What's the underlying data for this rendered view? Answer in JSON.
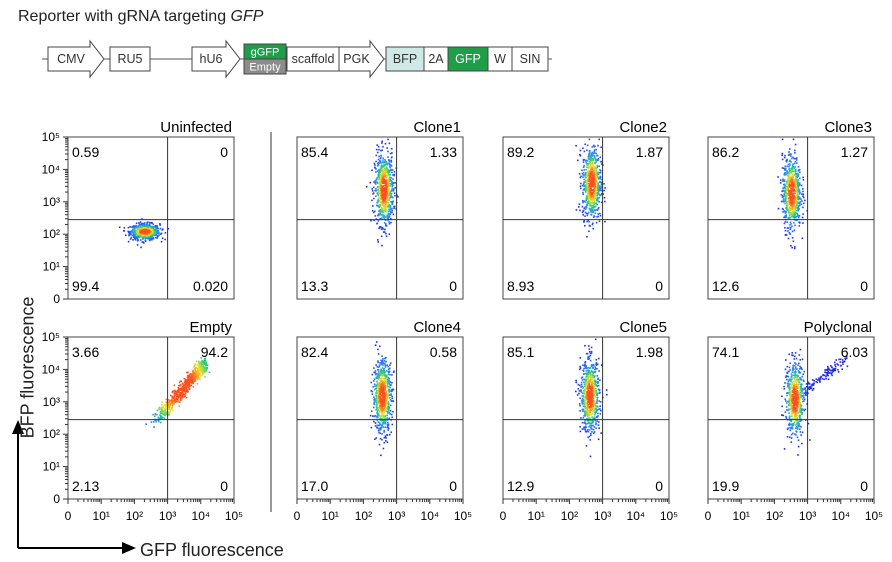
{
  "figure_title": {
    "prefix": "Reporter with gRNA targeting ",
    "gene": "GFP"
  },
  "construct": {
    "elements": [
      {
        "label": "CMV",
        "kind": "arrow"
      },
      {
        "label": "RU5",
        "kind": "box"
      },
      {
        "label": "hU6",
        "kind": "arrow"
      },
      {
        "label": "gGFP",
        "kind": "green"
      },
      {
        "label": "Empty",
        "kind": "grey"
      },
      {
        "label": "scaffold",
        "kind": "box"
      },
      {
        "label": "PGK",
        "kind": "arrow"
      },
      {
        "label": "BFP",
        "kind": "lightblue"
      },
      {
        "label": "2A",
        "kind": "box"
      },
      {
        "label": "GFP",
        "kind": "green"
      },
      {
        "label": "W",
        "kind": "box"
      },
      {
        "label": "SIN",
        "kind": "box"
      }
    ],
    "colors": {
      "green": "#1f9e4a",
      "grey": "#8c8c8c",
      "lightblue": "#cfeae6"
    }
  },
  "axes": {
    "xlabel": "GFP fluorescence",
    "ylabel": "BFP fluorescence",
    "ticks": [
      "0",
      "10¹",
      "10²",
      "10³",
      "10⁴",
      "10⁵"
    ]
  },
  "chart_data": [
    {
      "type": "scatter",
      "title": "Uninfected",
      "quadrants": {
        "ul": "0.59",
        "ur": "0",
        "ll": "99.4",
        "lr": "0.020"
      },
      "gate": {
        "x": 3.0,
        "y": 2.45
      },
      "population": {
        "x": 2.3,
        "y": 2.1,
        "shape": "compact"
      }
    },
    {
      "type": "scatter",
      "title": "Clone1",
      "quadrants": {
        "ul": "85.4",
        "ur": "1.33",
        "ll": "13.3",
        "lr": "0"
      },
      "gate": {
        "x": 3.0,
        "y": 2.45
      },
      "population": {
        "x": 2.6,
        "y": 3.4,
        "shape": "vertical"
      }
    },
    {
      "type": "scatter",
      "title": "Clone2",
      "quadrants": {
        "ul": "89.2",
        "ur": "1.87",
        "ll": "8.93",
        "lr": "0"
      },
      "gate": {
        "x": 3.0,
        "y": 2.45
      },
      "population": {
        "x": 2.65,
        "y": 3.6,
        "shape": "vertical"
      }
    },
    {
      "type": "scatter",
      "title": "Clone3",
      "quadrants": {
        "ul": "86.2",
        "ur": "1.27",
        "ll": "12.6",
        "lr": "0"
      },
      "gate": {
        "x": 3.0,
        "y": 2.45
      },
      "population": {
        "x": 2.5,
        "y": 3.3,
        "shape": "vertical"
      }
    },
    {
      "type": "scatter",
      "title": "Empty",
      "quadrants": {
        "ul": "3.66",
        "ur": "94.2",
        "ll": "2.13",
        "lr": "0"
      },
      "gate": {
        "x": 3.0,
        "y": 2.45
      },
      "population": {
        "x": 3.4,
        "y": 3.7,
        "shape": "diagonal"
      }
    },
    {
      "type": "scatter",
      "title": "Clone4",
      "quadrants": {
        "ul": "82.4",
        "ur": "0.58",
        "ll": "17.0",
        "lr": "0"
      },
      "gate": {
        "x": 3.0,
        "y": 2.45
      },
      "population": {
        "x": 2.55,
        "y": 3.2,
        "shape": "vertical"
      }
    },
    {
      "type": "scatter",
      "title": "Clone5",
      "quadrants": {
        "ul": "85.1",
        "ur": "1.98",
        "ll": "12.9",
        "lr": "0"
      },
      "gate": {
        "x": 3.0,
        "y": 2.45
      },
      "population": {
        "x": 2.6,
        "y": 3.2,
        "shape": "vertical"
      }
    },
    {
      "type": "scatter",
      "title": "Polyclonal",
      "quadrants": {
        "ul": "74.1",
        "ur": "6.03",
        "ll": "19.9",
        "lr": "0"
      },
      "gate": {
        "x": 3.0,
        "y": 2.45
      },
      "population": {
        "x": 2.6,
        "y": 3.1,
        "shape": "vertical-plus-diagonal"
      }
    }
  ]
}
